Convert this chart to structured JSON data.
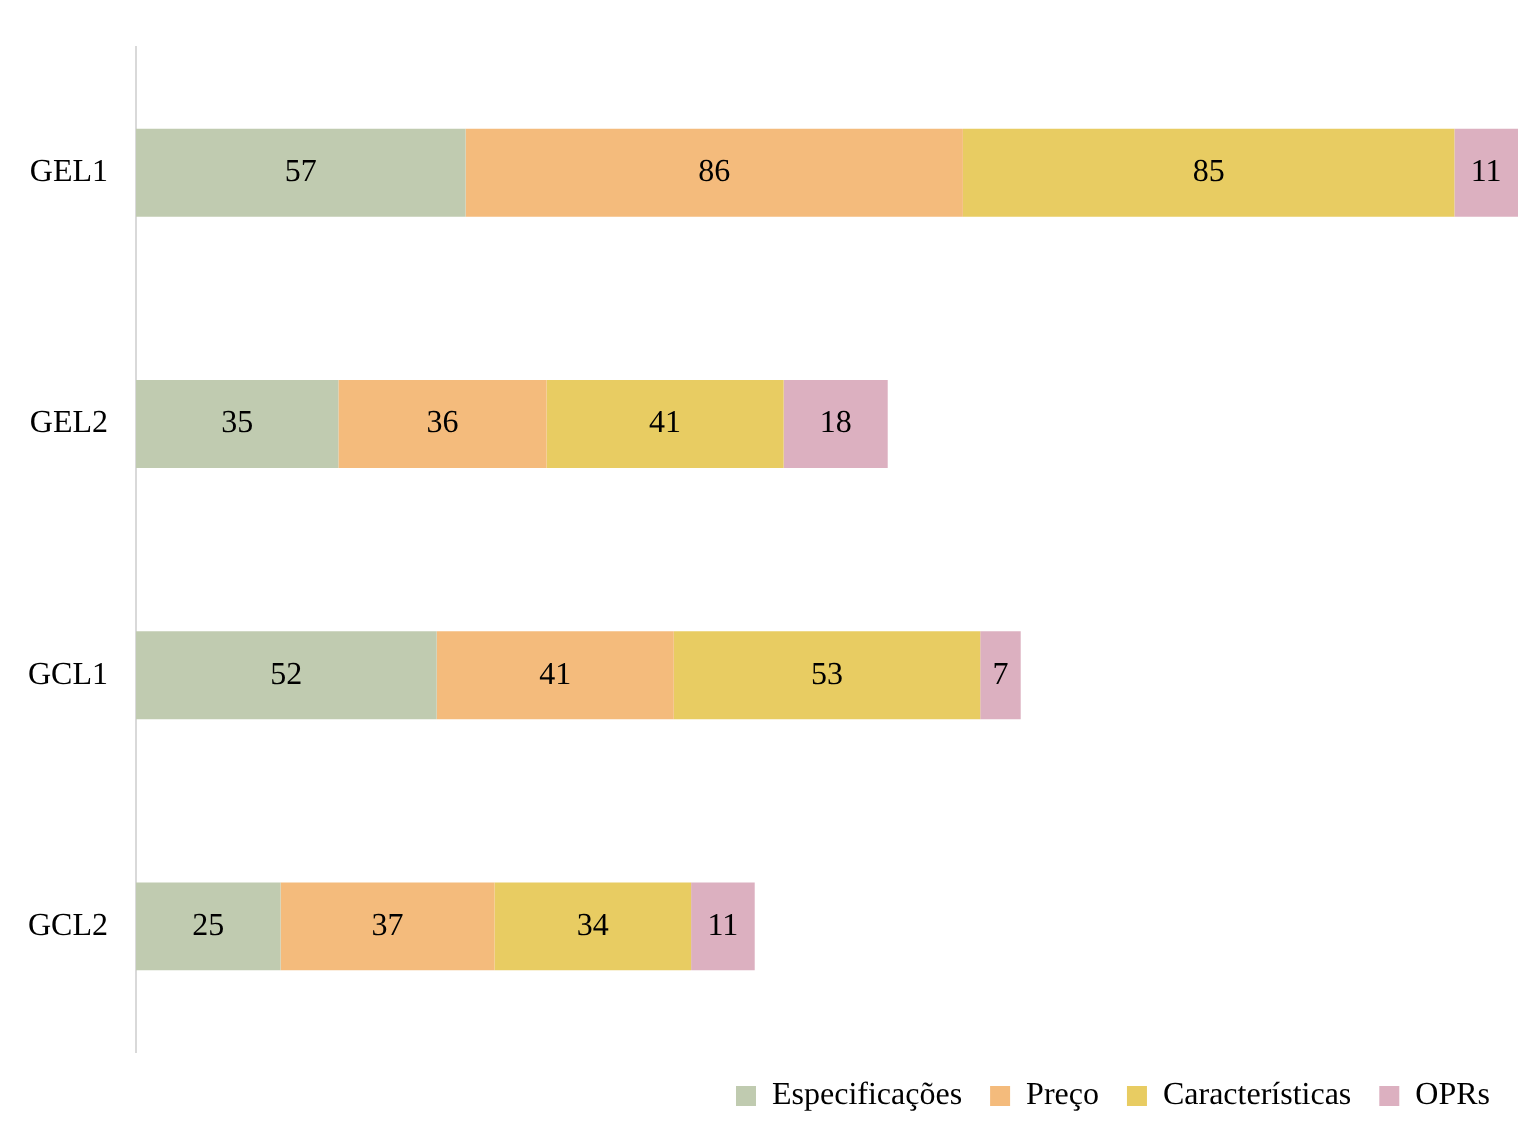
{
  "chart_data": {
    "type": "bar",
    "orientation": "horizontal",
    "stacked": true,
    "categories": [
      "GEL1",
      "GEL2",
      "GCL1",
      "GCL2"
    ],
    "series": [
      {
        "name": "Especificações",
        "color": "#c0cbb0",
        "values": [
          57,
          35,
          52,
          25
        ]
      },
      {
        "name": "Preço",
        "color": "#f4bb7c",
        "values": [
          86,
          36,
          41,
          37
        ]
      },
      {
        "name": "Características",
        "color": "#e8cc62",
        "values": [
          85,
          41,
          53,
          34
        ]
      },
      {
        "name": "OPRs",
        "color": "#dcb0c0",
        "values": [
          11,
          18,
          7,
          11
        ]
      }
    ],
    "xlim": [
      0,
      239
    ],
    "data_labels": true,
    "legend": "bottom",
    "tick_labels": "y"
  }
}
